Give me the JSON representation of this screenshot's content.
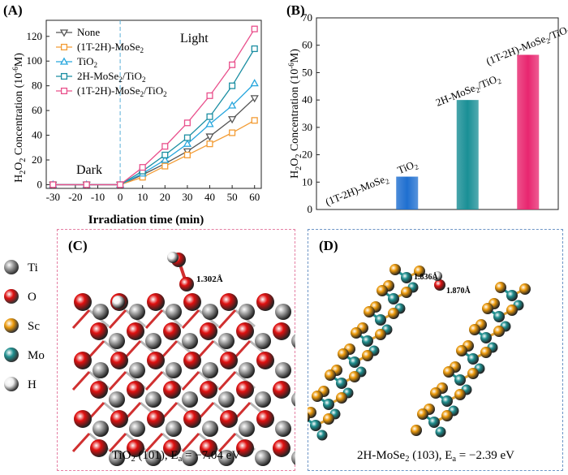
{
  "panels": {
    "a": "(A)",
    "b": "(B)",
    "c": "(C)",
    "d": "(D)"
  },
  "chart_data": [
    {
      "type": "line",
      "xlabel": "Irradiation time (min)",
      "ylabel": "H2O2 Concentration (10⁻⁶M)",
      "ylabel_main": "H",
      "ylabel_sub1": "2",
      "ylabel_mid": "O",
      "ylabel_sub2": "2",
      "ylabel_tail": " Concentration (10",
      "ylabel_sup": "-6",
      "ylabel_end": "M)",
      "x": [
        -30,
        -15,
        0,
        10,
        20,
        30,
        40,
        50,
        60
      ],
      "xticks": [
        "-30",
        "-20",
        "-10",
        "0",
        "10",
        "20",
        "30",
        "40",
        "50",
        "60"
      ],
      "yticks": [
        "0",
        "20",
        "40",
        "60",
        "80",
        "100",
        "120"
      ],
      "xlim": [
        -33,
        63
      ],
      "ylim": [
        -3,
        133
      ],
      "annotations": {
        "dark": "Dark",
        "light": "Light"
      },
      "series": [
        {
          "name": "None",
          "color": "#555555",
          "marker": "triangle-down",
          "values": [
            0,
            0,
            0,
            8,
            17,
            27,
            39,
            53,
            70
          ]
        },
        {
          "name": "(1T-2H)-MoSe2",
          "color": "#f39c34",
          "marker": "square",
          "values": [
            0,
            0,
            0,
            6,
            15,
            24,
            33,
            42,
            52
          ]
        },
        {
          "name": "TiO2",
          "color": "#27a6dd",
          "marker": "triangle-up",
          "values": [
            0,
            0,
            0,
            9,
            20,
            33,
            49,
            64,
            82
          ]
        },
        {
          "name": "2H-MoSe2/TiO2",
          "color": "#1b8ea2",
          "marker": "square",
          "values": [
            0,
            0,
            0,
            11,
            24,
            38,
            55,
            80,
            110
          ]
        },
        {
          "name": "(1T-2H)-MoSe2/TiO2",
          "color": "#e9508c",
          "marker": "square",
          "values": [
            0,
            0,
            0,
            14,
            31,
            50,
            72,
            97,
            126
          ]
        }
      ]
    },
    {
      "type": "bar",
      "ylabel": "H2O2 Concentration (10⁻⁶M)",
      "categories": [
        "(1T-2H)-MoSe2",
        "TiO2",
        "2H-MoSe2/TiO2",
        "(1T-2H)-MoSe2/TiO2"
      ],
      "values": [
        0,
        12,
        40,
        56.5
      ],
      "colors": [
        "#ffffff",
        "#1f6fd0",
        "#1a8f96",
        "#e8266f"
      ],
      "ylim": [
        0,
        70
      ],
      "yticks": [
        "0",
        "10",
        "20",
        "30",
        "40",
        "50",
        "60",
        "70"
      ]
    }
  ],
  "legend": {
    "entries": [
      {
        "pre": "None",
        "sub": "",
        "post": ""
      },
      {
        "pre": "(1T-2H)-MoSe",
        "sub": "2",
        "post": ""
      },
      {
        "pre": "TiO",
        "sub": "2",
        "post": ""
      },
      {
        "pre": "2H-MoSe",
        "sub": "2",
        "post": "/TiO",
        "sub2": "2"
      },
      {
        "pre": "(1T-2H)-MoSe",
        "sub": "2",
        "post": "/TiO",
        "sub2": "2"
      }
    ]
  },
  "bar_labels": [
    {
      "pre": "(1T-2H)-MoSe",
      "sub": "2"
    },
    {
      "pre": "TiO",
      "sub": "2"
    },
    {
      "pre": "2H-MoSe",
      "sub": "2",
      "post": "/TiO",
      "sub2": "2"
    },
    {
      "pre": "(1T-2H)-MoSe",
      "sub": "2",
      "post": "/TiO",
      "sub2": "2"
    }
  ],
  "atom_legend": [
    {
      "label": "Ti",
      "color": "#9a9a9a"
    },
    {
      "label": "O",
      "color": "#e01010"
    },
    {
      "label": "Sc",
      "color": "#ec9a0c"
    },
    {
      "label": "Mo",
      "color": "#1f8f8f"
    },
    {
      "label": "H",
      "color": "#eeeeee"
    }
  ],
  "structure_c": {
    "bond_label": "1.302Å",
    "caption_pre": "TiO",
    "caption_sub": "2",
    "caption_mid": " (101), E",
    "caption_sub2": "a",
    "caption_post": " = −7.04 eV",
    "border_color": "#e57fa3"
  },
  "structure_d": {
    "bond_label_1": "1.836Å",
    "bond_label_2": "1.870Å",
    "caption_pre": "2H-MoSe",
    "caption_sub": "2",
    "caption_mid": " (103), E",
    "caption_sub2": "a",
    "caption_post": " = −2.39 eV",
    "border_color": "#6d95c6"
  }
}
